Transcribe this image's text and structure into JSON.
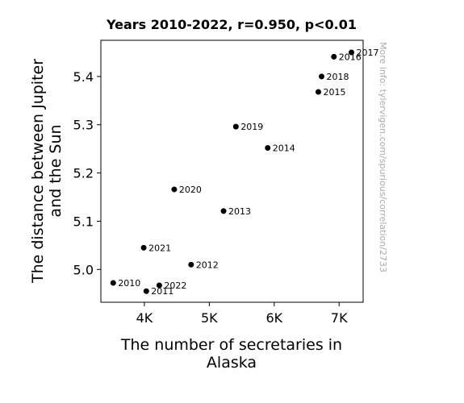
{
  "chart_data": {
    "type": "scatter",
    "title": "Years 2010-2022, r=0.950, p<0.01",
    "xlabel_lines": [
      "The number of secretaries in",
      "Alaska"
    ],
    "ylabel_lines": [
      "The distance between Jupiter",
      "and the Sun"
    ],
    "watermark": "More info: tylervigen.com/spurious/correlation/2733",
    "xlim": [
      3330,
      7370
    ],
    "ylim": [
      4.932,
      5.475
    ],
    "xticks": [
      {
        "value": 4000,
        "label": "4K"
      },
      {
        "value": 5000,
        "label": "5K"
      },
      {
        "value": 6000,
        "label": "6K"
      },
      {
        "value": 7000,
        "label": "7K"
      }
    ],
    "yticks": [
      {
        "value": 5.0,
        "label": "5.0"
      },
      {
        "value": 5.1,
        "label": "5.1"
      },
      {
        "value": 5.2,
        "label": "5.2"
      },
      {
        "value": 5.3,
        "label": "5.3"
      },
      {
        "value": 5.4,
        "label": "5.4"
      }
    ],
    "grid": false,
    "marker_color": "#000000",
    "points": [
      {
        "label": "2010",
        "x": 3520,
        "y": 4.972
      },
      {
        "label": "2011",
        "x": 4030,
        "y": 4.955
      },
      {
        "label": "2012",
        "x": 4720,
        "y": 5.01
      },
      {
        "label": "2013",
        "x": 5220,
        "y": 5.121
      },
      {
        "label": "2014",
        "x": 5900,
        "y": 5.252
      },
      {
        "label": "2015",
        "x": 6680,
        "y": 5.368
      },
      {
        "label": "2016",
        "x": 6920,
        "y": 5.441
      },
      {
        "label": "2017",
        "x": 7190,
        "y": 5.45
      },
      {
        "label": "2018",
        "x": 6730,
        "y": 5.4
      },
      {
        "label": "2019",
        "x": 5410,
        "y": 5.296
      },
      {
        "label": "2020",
        "x": 4460,
        "y": 5.166
      },
      {
        "label": "2021",
        "x": 3990,
        "y": 5.045
      },
      {
        "label": "2022",
        "x": 4230,
        "y": 4.967
      }
    ]
  }
}
